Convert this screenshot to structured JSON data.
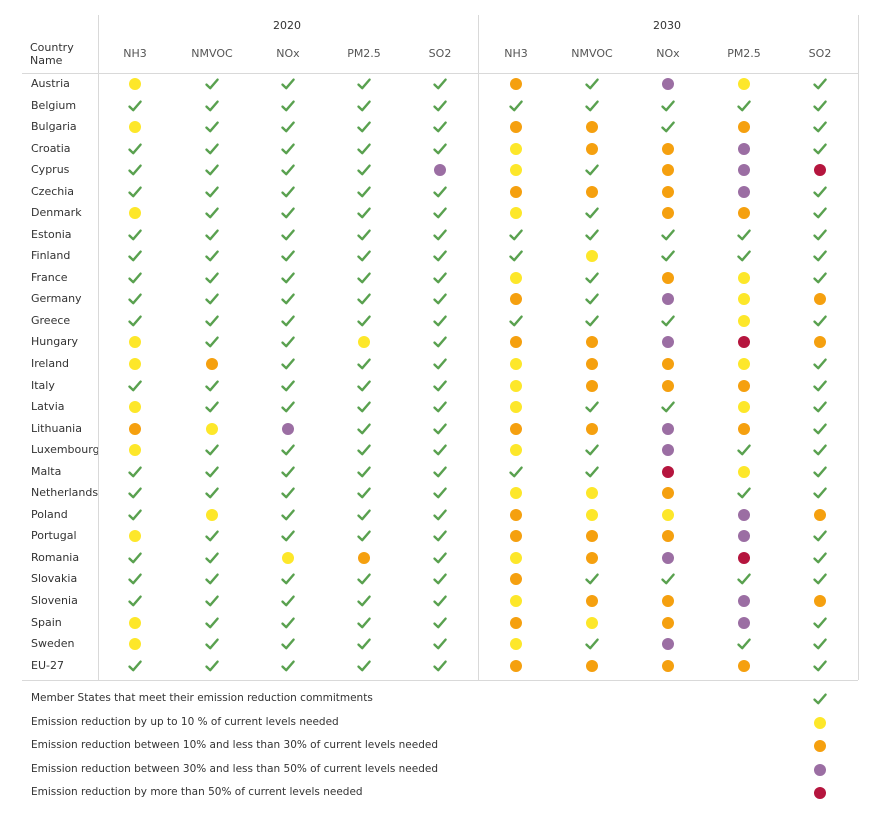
{
  "colors": {
    "check": "#59a14f",
    "yellow": "#fde72a",
    "orange": "#f5a00f",
    "purple": "#9b6ea3",
    "crimson": "#b5153e"
  },
  "symbol_key": {
    "C": "check",
    "Y": "up to 10%",
    "O": "10% to less than 30%",
    "P": "30% to less than 50%",
    "R": "more than 50%"
  },
  "chart_data": {
    "type": "table",
    "row_header": "Country Name",
    "years": [
      "2020",
      "2030"
    ],
    "pollutants": [
      "NH3",
      "NMVOC",
      "NOx",
      "PM2.5",
      "SO2"
    ],
    "rows": [
      {
        "country": "Austria",
        "y2020": [
          "Y",
          "C",
          "C",
          "C",
          "C"
        ],
        "y2030": [
          "O",
          "C",
          "P",
          "Y",
          "C"
        ]
      },
      {
        "country": "Belgium",
        "y2020": [
          "C",
          "C",
          "C",
          "C",
          "C"
        ],
        "y2030": [
          "C",
          "C",
          "C",
          "C",
          "C"
        ]
      },
      {
        "country": "Bulgaria",
        "y2020": [
          "Y",
          "C",
          "C",
          "C",
          "C"
        ],
        "y2030": [
          "O",
          "O",
          "C",
          "O",
          "C"
        ]
      },
      {
        "country": "Croatia",
        "y2020": [
          "C",
          "C",
          "C",
          "C",
          "C"
        ],
        "y2030": [
          "Y",
          "O",
          "O",
          "P",
          "C"
        ]
      },
      {
        "country": "Cyprus",
        "y2020": [
          "C",
          "C",
          "C",
          "C",
          "P"
        ],
        "y2030": [
          "Y",
          "C",
          "O",
          "P",
          "R"
        ]
      },
      {
        "country": "Czechia",
        "y2020": [
          "C",
          "C",
          "C",
          "C",
          "C"
        ],
        "y2030": [
          "O",
          "O",
          "O",
          "P",
          "C"
        ]
      },
      {
        "country": "Denmark",
        "y2020": [
          "Y",
          "C",
          "C",
          "C",
          "C"
        ],
        "y2030": [
          "Y",
          "C",
          "O",
          "O",
          "C"
        ]
      },
      {
        "country": "Estonia",
        "y2020": [
          "C",
          "C",
          "C",
          "C",
          "C"
        ],
        "y2030": [
          "C",
          "C",
          "C",
          "C",
          "C"
        ]
      },
      {
        "country": "Finland",
        "y2020": [
          "C",
          "C",
          "C",
          "C",
          "C"
        ],
        "y2030": [
          "C",
          "Y",
          "C",
          "C",
          "C"
        ]
      },
      {
        "country": "France",
        "y2020": [
          "C",
          "C",
          "C",
          "C",
          "C"
        ],
        "y2030": [
          "Y",
          "C",
          "O",
          "Y",
          "C"
        ]
      },
      {
        "country": "Germany",
        "y2020": [
          "C",
          "C",
          "C",
          "C",
          "C"
        ],
        "y2030": [
          "O",
          "C",
          "P",
          "Y",
          "O"
        ]
      },
      {
        "country": "Greece",
        "y2020": [
          "C",
          "C",
          "C",
          "C",
          "C"
        ],
        "y2030": [
          "C",
          "C",
          "C",
          "Y",
          "C"
        ]
      },
      {
        "country": "Hungary",
        "y2020": [
          "Y",
          "C",
          "C",
          "Y",
          "C"
        ],
        "y2030": [
          "O",
          "O",
          "P",
          "R",
          "O"
        ]
      },
      {
        "country": "Ireland",
        "y2020": [
          "Y",
          "O",
          "C",
          "C",
          "C"
        ],
        "y2030": [
          "Y",
          "O",
          "O",
          "Y",
          "C"
        ]
      },
      {
        "country": "Italy",
        "y2020": [
          "C",
          "C",
          "C",
          "C",
          "C"
        ],
        "y2030": [
          "Y",
          "O",
          "O",
          "O",
          "C"
        ]
      },
      {
        "country": "Latvia",
        "y2020": [
          "Y",
          "C",
          "C",
          "C",
          "C"
        ],
        "y2030": [
          "Y",
          "C",
          "C",
          "Y",
          "C"
        ]
      },
      {
        "country": "Lithuania",
        "y2020": [
          "O",
          "Y",
          "P",
          "C",
          "C"
        ],
        "y2030": [
          "O",
          "O",
          "P",
          "O",
          "C"
        ]
      },
      {
        "country": "Luxembourg",
        "y2020": [
          "Y",
          "C",
          "C",
          "C",
          "C"
        ],
        "y2030": [
          "Y",
          "C",
          "P",
          "C",
          "C"
        ]
      },
      {
        "country": "Malta",
        "y2020": [
          "C",
          "C",
          "C",
          "C",
          "C"
        ],
        "y2030": [
          "C",
          "C",
          "R",
          "Y",
          "C"
        ]
      },
      {
        "country": "Netherlands",
        "y2020": [
          "C",
          "C",
          "C",
          "C",
          "C"
        ],
        "y2030": [
          "Y",
          "Y",
          "O",
          "C",
          "C"
        ]
      },
      {
        "country": "Poland",
        "y2020": [
          "C",
          "Y",
          "C",
          "C",
          "C"
        ],
        "y2030": [
          "O",
          "Y",
          "Y",
          "P",
          "O"
        ]
      },
      {
        "country": "Portugal",
        "y2020": [
          "Y",
          "C",
          "C",
          "C",
          "C"
        ],
        "y2030": [
          "O",
          "O",
          "O",
          "P",
          "C"
        ]
      },
      {
        "country": "Romania",
        "y2020": [
          "C",
          "C",
          "Y",
          "O",
          "C"
        ],
        "y2030": [
          "Y",
          "O",
          "P",
          "R",
          "C"
        ]
      },
      {
        "country": "Slovakia",
        "y2020": [
          "C",
          "C",
          "C",
          "C",
          "C"
        ],
        "y2030": [
          "O",
          "C",
          "C",
          "C",
          "C"
        ]
      },
      {
        "country": "Slovenia",
        "y2020": [
          "C",
          "C",
          "C",
          "C",
          "C"
        ],
        "y2030": [
          "Y",
          "O",
          "O",
          "P",
          "O"
        ]
      },
      {
        "country": "Spain",
        "y2020": [
          "Y",
          "C",
          "C",
          "C",
          "C"
        ],
        "y2030": [
          "O",
          "Y",
          "O",
          "P",
          "C"
        ]
      },
      {
        "country": "Sweden",
        "y2020": [
          "Y",
          "C",
          "C",
          "C",
          "C"
        ],
        "y2030": [
          "Y",
          "C",
          "P",
          "C",
          "C"
        ]
      },
      {
        "country": "EU-27",
        "y2020": [
          "C",
          "C",
          "C",
          "C",
          "C"
        ],
        "y2030": [
          "O",
          "O",
          "O",
          "O",
          "C"
        ]
      }
    ],
    "legend": [
      {
        "symbol": "C",
        "label": "Member States that meet their emission reduction commitments"
      },
      {
        "symbol": "Y",
        "label": "Emission reduction by up to 10 % of current levels needed"
      },
      {
        "symbol": "O",
        "label": "Emission reduction between 10% and less than 30% of current levels needed"
      },
      {
        "symbol": "P",
        "label": "Emission reduction between 30% and less than 50% of current levels needed"
      },
      {
        "symbol": "R",
        "label": "Emission reduction by more than 50% of current levels needed"
      }
    ]
  }
}
